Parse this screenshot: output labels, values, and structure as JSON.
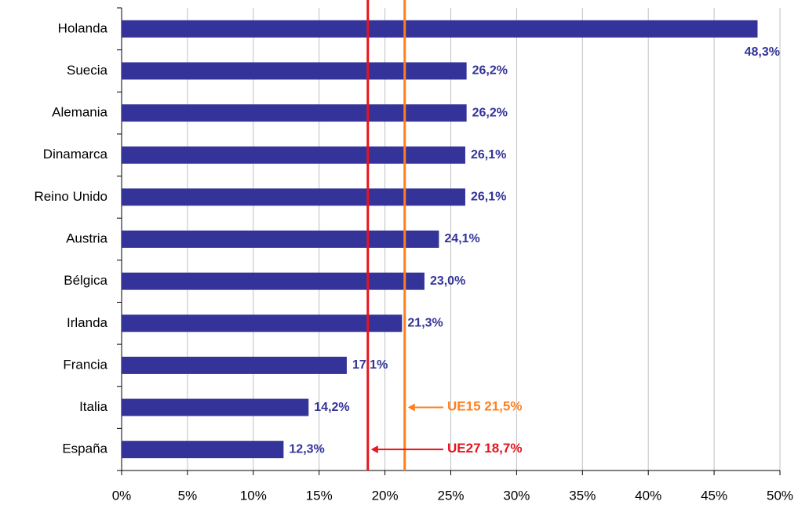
{
  "chart_data": {
    "type": "bar",
    "orientation": "horizontal",
    "categories": [
      "Holanda",
      "Suecia",
      "Alemania",
      "Dinamarca",
      "Reino Unido",
      "Austria",
      "Bélgica",
      "Irlanda",
      "Francia",
      "Italia",
      "España"
    ],
    "values": [
      48.3,
      26.2,
      26.2,
      26.1,
      26.1,
      24.1,
      23.0,
      21.3,
      17.1,
      14.2,
      12.3
    ],
    "value_labels": [
      "48,3%",
      "26,2%",
      "26,2%",
      "26,1%",
      "26,1%",
      "24,1%",
      "23,0%",
      "21,3%",
      "17,1%",
      "14,2%",
      "12,3%"
    ],
    "color": "#333399",
    "xlim": [
      0,
      50
    ],
    "xticks": [
      {
        "value": 0,
        "label": "0%"
      },
      {
        "value": 5,
        "label": "5%"
      },
      {
        "value": 10,
        "label": "10%"
      },
      {
        "value": 15,
        "label": "15%"
      },
      {
        "value": 20,
        "label": "20%"
      },
      {
        "value": 25,
        "label": "25%"
      },
      {
        "value": 30,
        "label": "30%"
      },
      {
        "value": 35,
        "label": "35%"
      },
      {
        "value": 40,
        "label": "40%"
      },
      {
        "value": 45,
        "label": "45%"
      },
      {
        "value": 50,
        "label": "50%"
      }
    ],
    "grid": true,
    "reference_lines": [
      {
        "name": "UE15",
        "value": 21.5,
        "label": "21,5%",
        "color": "#ff7f1f"
      },
      {
        "name": "UE27",
        "value": 18.7,
        "label": "18,7%",
        "color": "#e8141e"
      }
    ]
  }
}
